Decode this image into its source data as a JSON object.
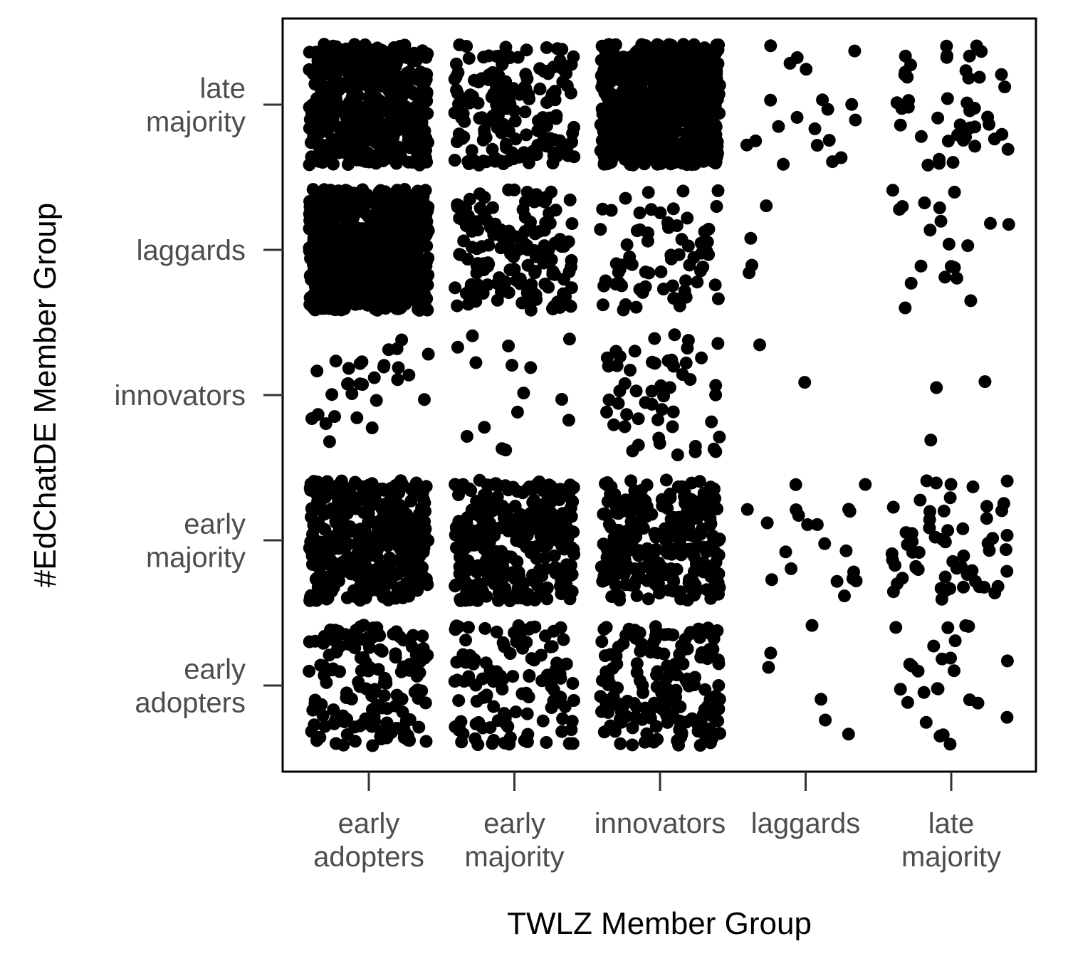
{
  "chart_data": {
    "type": "scatter",
    "jitter": true,
    "xlabel": "TWLZ Member Group",
    "ylabel": "#EdChatDE Member Group",
    "x_categories": [
      [
        "early",
        "adopters"
      ],
      [
        "early",
        "majority"
      ],
      [
        "innovators"
      ],
      [
        "laggards"
      ],
      [
        "late",
        "majority"
      ]
    ],
    "y_categories": [
      [
        "early",
        "adopters"
      ],
      [
        "early",
        "majority"
      ],
      [
        "innovators"
      ],
      [
        "laggards"
      ],
      [
        "late",
        "majority"
      ]
    ],
    "approx_point_counts": [
      [
        150,
        120,
        160,
        6,
        25
      ],
      [
        400,
        300,
        260,
        20,
        60
      ],
      [
        30,
        15,
        55,
        2,
        3
      ],
      [
        700,
        160,
        70,
        4,
        20
      ],
      [
        450,
        160,
        700,
        20,
        45
      ]
    ],
    "grid": false,
    "legend": "none",
    "point_color": "#000000",
    "frame_color": "#000000"
  }
}
